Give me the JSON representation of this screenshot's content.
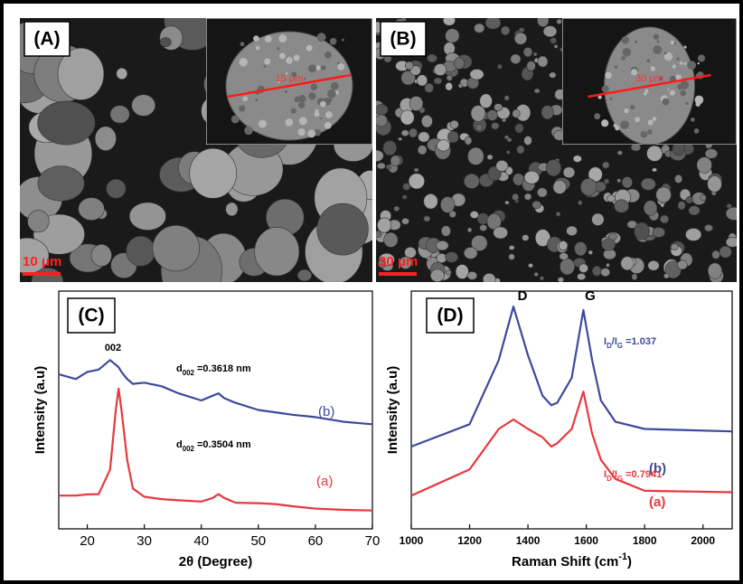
{
  "panels": [
    {
      "label": "(A)",
      "scale_bar": "10 μm",
      "inset_measure": "15 μm"
    },
    {
      "label": "(B)",
      "scale_bar": "30 μm",
      "inset_measure": "30 μm"
    }
  ],
  "chart_data": [
    {
      "type": "line",
      "panel_label": "(C)",
      "xlabel": "2θ (Degree)",
      "ylabel": "Intensity (a.u)",
      "x": [
        15,
        18,
        20,
        22,
        24,
        25,
        25.5,
        26,
        27,
        28,
        30,
        33,
        36,
        40,
        42,
        43,
        44,
        46,
        50,
        53,
        56,
        60,
        65,
        70
      ],
      "xlim": [
        15,
        70
      ],
      "xticks": [
        20,
        30,
        40,
        50,
        60,
        70
      ],
      "ylim": [
        0,
        100
      ],
      "series": [
        {
          "name": "(a)",
          "color": "#e8383d",
          "values": [
            14,
            14,
            14.5,
            14.6,
            25,
            50,
            59,
            50,
            29,
            17,
            13.5,
            12.5,
            12,
            11.5,
            13,
            14.6,
            13,
            11,
            10.8,
            10.4,
            9.5,
            8.5,
            8,
            7.7
          ]
        },
        {
          "name": "(b)",
          "color": "#3b4a9c",
          "values": [
            65,
            63,
            66,
            67,
            71,
            69,
            68,
            66,
            63,
            61,
            61.5,
            60,
            57,
            54,
            56,
            57,
            55,
            53,
            50,
            49,
            48,
            47,
            45,
            44
          ]
        }
      ],
      "annotations": [
        {
          "text": "002"
        },
        {
          "text": "d",
          "sub": "002",
          "rest": " =0.3618 nm"
        },
        {
          "text": "d",
          "sub": "002",
          "rest": " =0.3504 nm"
        }
      ]
    },
    {
      "type": "line",
      "panel_label": "(D)",
      "xlabel": {
        "text": "Raman Shift (cm",
        "sup": "-1",
        "rest": ")"
      },
      "ylabel": "Intensity (a.u)",
      "x": [
        1000,
        1200,
        1300,
        1350,
        1400,
        1450,
        1480,
        1500,
        1550,
        1590,
        1620,
        1650,
        1700,
        1800,
        2100
      ],
      "xlim": [
        1000,
        2100
      ],
      "xticks": [
        1000,
        1200,
        1400,
        1600,
        1800,
        2000
      ],
      "ylim": [
        0,
        100
      ],
      "series": [
        {
          "name": "(a)",
          "color": "#e8383d",
          "values": [
            14,
            25,
            42,
            46,
            42,
            38.5,
            34.6,
            36,
            42,
            57.7,
            40,
            29,
            21,
            16,
            15.4
          ]
        },
        {
          "name": "(b)",
          "color": "#3b4a9c",
          "values": [
            34.6,
            44,
            71,
            93.5,
            73,
            56,
            52,
            53,
            63.5,
            92,
            71,
            54,
            45,
            42,
            41
          ]
        }
      ],
      "annotations": [
        {
          "text": "D"
        },
        {
          "text": "G"
        },
        {
          "text": "I",
          "sub": "D",
          "rest": "/I",
          "sub2": "G",
          "rest2": " =1.037"
        },
        {
          "text": "I",
          "sub": "D",
          "rest": "/I",
          "sub2": "G",
          "rest2": " =0.7941"
        }
      ]
    }
  ]
}
